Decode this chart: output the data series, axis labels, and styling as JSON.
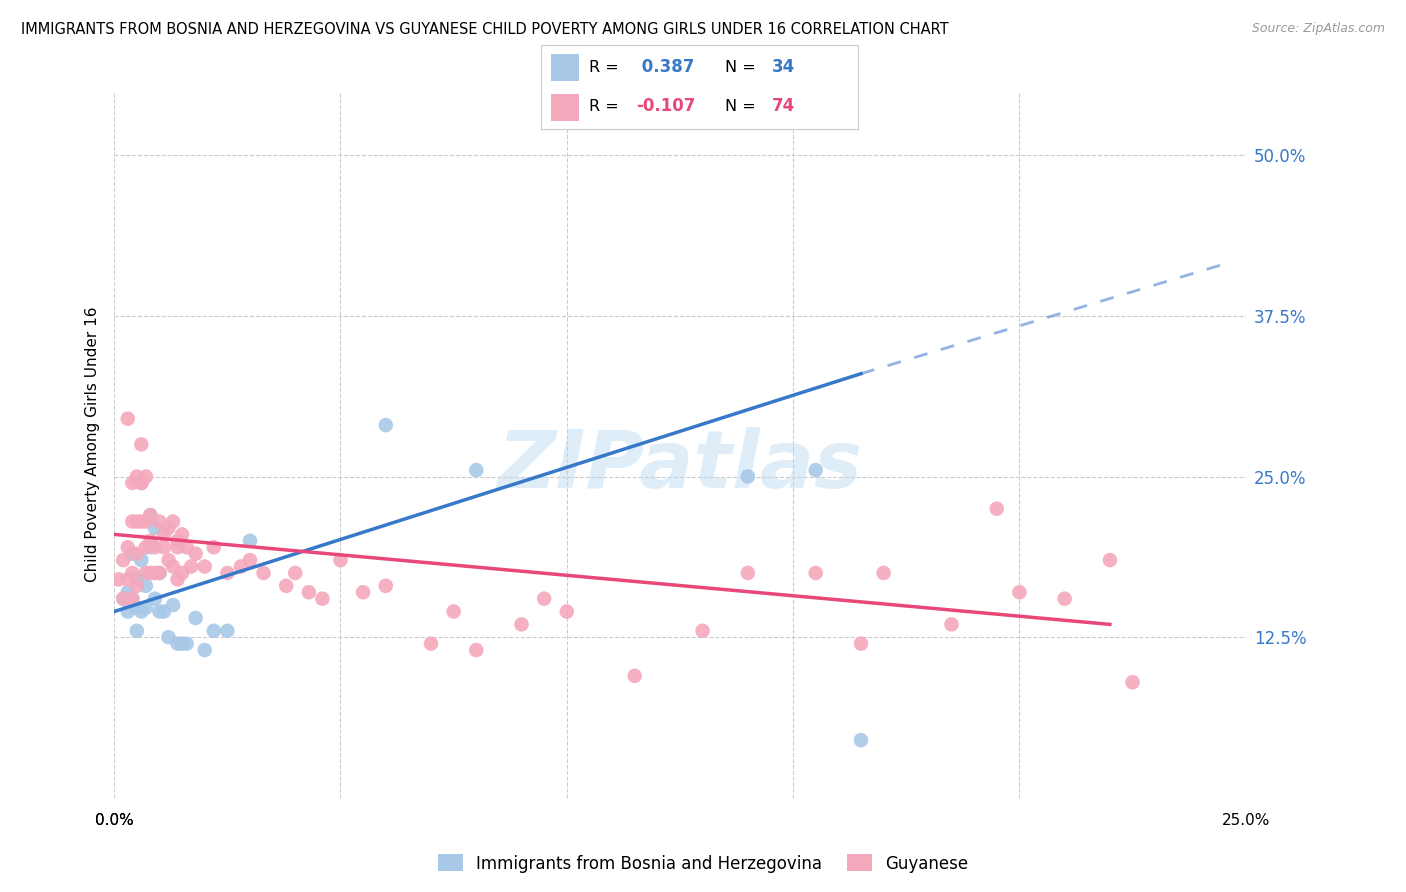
{
  "title": "IMMIGRANTS FROM BOSNIA AND HERZEGOVINA VS GUYANESE CHILD POVERTY AMONG GIRLS UNDER 16 CORRELATION CHART",
  "source": "Source: ZipAtlas.com",
  "ylabel": "Child Poverty Among Girls Under 16",
  "ytick_labels": [
    "12.5%",
    "25.0%",
    "37.5%",
    "50.0%"
  ],
  "ytick_values": [
    0.125,
    0.25,
    0.375,
    0.5
  ],
  "xtick_vals": [
    0.0,
    0.05,
    0.1,
    0.15,
    0.2,
    0.25
  ],
  "xlim": [
    0.0,
    0.25
  ],
  "ylim": [
    0.0,
    0.55
  ],
  "legend_labels": [
    "Immigrants from Bosnia and Herzegovina",
    "Guyanese"
  ],
  "blue_R": "0.387",
  "blue_N": "34",
  "pink_R": "-0.107",
  "pink_N": "74",
  "blue_color": "#a8c8e8",
  "pink_color": "#f4a8bc",
  "blue_line_color": "#3878c8",
  "pink_line_color": "#e84878",
  "watermark": "ZIPatlas",
  "blue_line_x0": 0.0,
  "blue_line_y0": 0.145,
  "blue_line_x1": 0.165,
  "blue_line_y1": 0.33,
  "blue_line_dash_x1": 0.245,
  "blue_line_dash_y1": 0.415,
  "pink_line_x0": 0.0,
  "pink_line_y0": 0.205,
  "pink_line_x1": 0.22,
  "pink_line_y1": 0.135,
  "blue_points_x": [
    0.002,
    0.003,
    0.003,
    0.004,
    0.004,
    0.005,
    0.005,
    0.005,
    0.006,
    0.006,
    0.007,
    0.007,
    0.008,
    0.008,
    0.009,
    0.009,
    0.01,
    0.01,
    0.011,
    0.012,
    0.013,
    0.014,
    0.015,
    0.016,
    0.018,
    0.02,
    0.022,
    0.025,
    0.03,
    0.06,
    0.08,
    0.14,
    0.155,
    0.165
  ],
  "blue_points_y": [
    0.155,
    0.16,
    0.145,
    0.19,
    0.155,
    0.17,
    0.148,
    0.13,
    0.185,
    0.145,
    0.165,
    0.148,
    0.22,
    0.195,
    0.21,
    0.155,
    0.145,
    0.175,
    0.145,
    0.125,
    0.15,
    0.12,
    0.12,
    0.12,
    0.14,
    0.115,
    0.13,
    0.13,
    0.2,
    0.29,
    0.255,
    0.25,
    0.255,
    0.045
  ],
  "pink_points_x": [
    0.001,
    0.002,
    0.002,
    0.003,
    0.003,
    0.003,
    0.004,
    0.004,
    0.004,
    0.004,
    0.005,
    0.005,
    0.005,
    0.005,
    0.006,
    0.006,
    0.006,
    0.006,
    0.007,
    0.007,
    0.007,
    0.007,
    0.008,
    0.008,
    0.008,
    0.009,
    0.009,
    0.01,
    0.01,
    0.011,
    0.011,
    0.012,
    0.012,
    0.013,
    0.013,
    0.014,
    0.014,
    0.014,
    0.015,
    0.015,
    0.016,
    0.017,
    0.018,
    0.02,
    0.022,
    0.025,
    0.028,
    0.03,
    0.033,
    0.038,
    0.04,
    0.043,
    0.046,
    0.05,
    0.055,
    0.06,
    0.07,
    0.075,
    0.08,
    0.09,
    0.095,
    0.1,
    0.115,
    0.13,
    0.14,
    0.155,
    0.165,
    0.17,
    0.185,
    0.195,
    0.2,
    0.21,
    0.22,
    0.225
  ],
  "pink_points_y": [
    0.17,
    0.185,
    0.155,
    0.195,
    0.295,
    0.17,
    0.245,
    0.215,
    0.175,
    0.155,
    0.25,
    0.215,
    0.19,
    0.165,
    0.245,
    0.215,
    0.275,
    0.245,
    0.25,
    0.215,
    0.195,
    0.175,
    0.2,
    0.22,
    0.175,
    0.175,
    0.195,
    0.215,
    0.175,
    0.205,
    0.195,
    0.185,
    0.21,
    0.18,
    0.215,
    0.195,
    0.2,
    0.17,
    0.205,
    0.175,
    0.195,
    0.18,
    0.19,
    0.18,
    0.195,
    0.175,
    0.18,
    0.185,
    0.175,
    0.165,
    0.175,
    0.16,
    0.155,
    0.185,
    0.16,
    0.165,
    0.12,
    0.145,
    0.115,
    0.135,
    0.155,
    0.145,
    0.095,
    0.13,
    0.175,
    0.175,
    0.12,
    0.175,
    0.135,
    0.225,
    0.16,
    0.155,
    0.185,
    0.09
  ]
}
